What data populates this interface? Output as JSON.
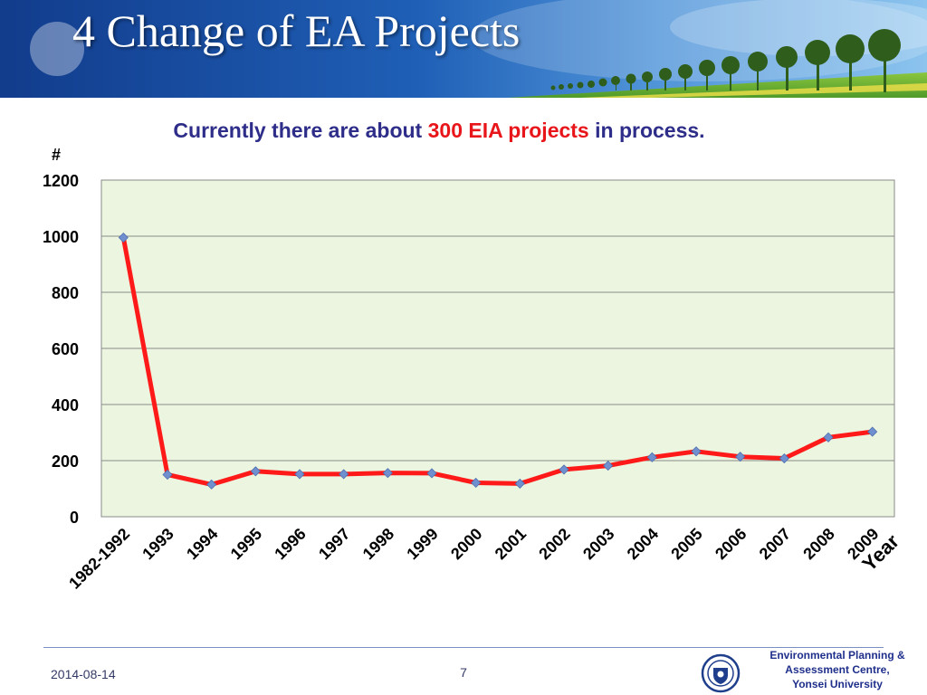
{
  "slide": {
    "title": "4 Change of EA Projects",
    "subtitle_prefix": "Currently there are about ",
    "subtitle_highlight": "300 EIA projects",
    "subtitle_suffix": " in process."
  },
  "footer": {
    "date": "2014-08-14",
    "page": "7",
    "org_line1": "Environmental Planning &",
    "org_line2": "Assessment Centre,",
    "org_line3": "Yonsei University"
  },
  "colors": {
    "line": "#ff1a1a",
    "marker": "#6f8fcf",
    "plot_background": "#ebf5df",
    "banner": "#1a4b9a",
    "subtitle": "#2e2e8a",
    "highlight": "#e8161b"
  },
  "chart_data": {
    "type": "line",
    "ylabel": "#",
    "xlabel": "Year",
    "ylim": [
      0,
      1200
    ],
    "yticks": [
      0,
      200,
      400,
      600,
      800,
      1000,
      1200
    ],
    "grid": true,
    "categories": [
      "1982-1992",
      "1993",
      "1994",
      "1995",
      "1996",
      "1997",
      "1998",
      "1999",
      "2000",
      "2001",
      "2002",
      "2003",
      "2004",
      "2005",
      "2006",
      "2007",
      "2008",
      "2009"
    ],
    "values": [
      995,
      150,
      115,
      162,
      152,
      152,
      156,
      155,
      121,
      118,
      168,
      182,
      212,
      233,
      214,
      208,
      283,
      303
    ]
  }
}
